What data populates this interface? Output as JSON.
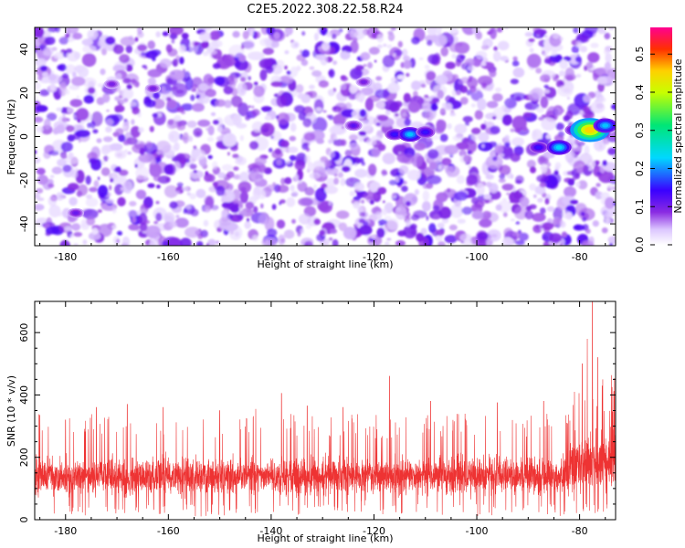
{
  "title": "C2E5.2022.308.22.58.R24",
  "chart_data": [
    {
      "type": "heatmap",
      "xlabel": "Height of straight line (km)",
      "ylabel": "Frequency (Hz)",
      "xlim": [
        -186,
        -73
      ],
      "ylim": [
        -50,
        50
      ],
      "x_ticks": [
        -180,
        -160,
        -140,
        -120,
        -100,
        -80
      ],
      "y_ticks": [
        -40,
        -20,
        0,
        20,
        40
      ],
      "colorbar": {
        "label": "Normalized spectral amplitude",
        "range": [
          0.0,
          0.57
        ],
        "ticks": [
          0.0,
          0.1,
          0.2,
          0.3,
          0.4,
          0.5
        ],
        "colormap": "rainbow (white at 0, purple, blue, cyan, green, yellow, red, magenta)"
      },
      "background": "speckled noise, amplitude mostly 0.03-0.12 (purple/violet)",
      "hotspots": [
        {
          "x": -178,
          "y": -35,
          "amp": 0.11
        },
        {
          "x": -171,
          "y": 24,
          "amp": 0.1
        },
        {
          "x": -163,
          "y": 22,
          "amp": 0.1
        },
        {
          "x": -124,
          "y": 5,
          "amp": 0.12
        },
        {
          "x": -122,
          "y": 25,
          "amp": 0.1
        },
        {
          "x": -116,
          "y": 1,
          "amp": 0.15
        },
        {
          "x": -113,
          "y": 1,
          "amp": 0.22
        },
        {
          "x": -110,
          "y": 2,
          "amp": 0.15
        },
        {
          "x": -88,
          "y": -5,
          "amp": 0.15
        },
        {
          "x": -84,
          "y": -5,
          "amp": 0.23
        },
        {
          "x": -81,
          "y": 3,
          "amp": 0.15
        },
        {
          "x": -78,
          "y": 3,
          "amp": 0.45
        },
        {
          "x": -75,
          "y": 5,
          "amp": 0.22
        }
      ]
    },
    {
      "type": "line",
      "color": "#ee3333",
      "xlabel": "Height of straight line (km)",
      "ylabel": "SNR (10 * v/v)",
      "xlim": [
        -186,
        -73
      ],
      "ylim": [
        0,
        700
      ],
      "x_ticks": [
        -180,
        -160,
        -140,
        -120,
        -100,
        -80
      ],
      "y_ticks": [
        0,
        200,
        400,
        600
      ],
      "baseline_range": [
        20,
        260
      ],
      "typical_peak": 260,
      "peaks": [
        {
          "x": -185,
          "y": 335
        },
        {
          "x": -180,
          "y": 320
        },
        {
          "x": -174,
          "y": 360
        },
        {
          "x": -168,
          "y": 370
        },
        {
          "x": -161,
          "y": 360
        },
        {
          "x": -150,
          "y": 350
        },
        {
          "x": -143,
          "y": 355
        },
        {
          "x": -138,
          "y": 405
        },
        {
          "x": -133,
          "y": 365
        },
        {
          "x": -126,
          "y": 360
        },
        {
          "x": -117,
          "y": 460
        },
        {
          "x": -109,
          "y": 380
        },
        {
          "x": -96,
          "y": 375
        },
        {
          "x": -87,
          "y": 380
        },
        {
          "x": -81,
          "y": 410
        },
        {
          "x": -79.5,
          "y": 500
        },
        {
          "x": -78.5,
          "y": 580
        },
        {
          "x": -77.5,
          "y": 700
        },
        {
          "x": -76.5,
          "y": 520
        },
        {
          "x": -75.5,
          "y": 450
        }
      ]
    }
  ]
}
